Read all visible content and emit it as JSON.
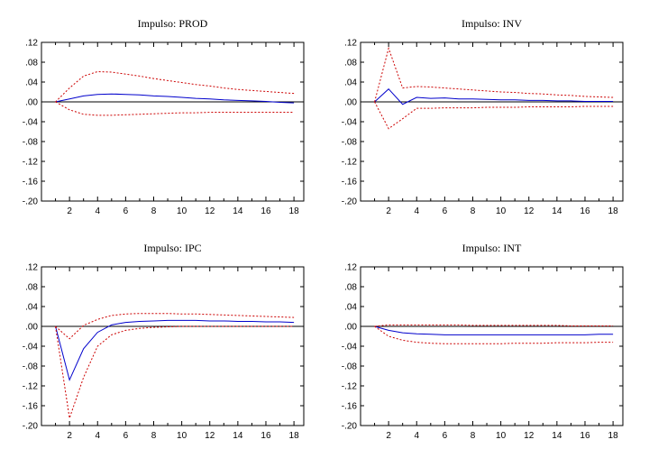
{
  "chart_data": [
    {
      "type": "line",
      "title": "Impulso: PROD",
      "x": [
        1,
        2,
        3,
        4,
        5,
        6,
        7,
        8,
        9,
        10,
        11,
        12,
        13,
        14,
        15,
        16,
        17,
        18
      ],
      "xticks": [
        2,
        4,
        6,
        8,
        10,
        12,
        14,
        16,
        18
      ],
      "xlim": [
        0,
        18.7
      ],
      "ylim": [
        -0.2,
        0.12
      ],
      "yticks": [
        0.12,
        0.08,
        0.04,
        0.0,
        -0.04,
        -0.08,
        -0.12,
        -0.16,
        -0.2
      ],
      "ytick_labels": [
        ".12",
        ".08",
        ".04",
        ".00",
        "-.04",
        "-.08",
        "-.12",
        "-.16",
        "-.20"
      ],
      "zero_line": true,
      "grid": false,
      "series": [
        {
          "role": "response",
          "color": "#0000cc",
          "dash": "solid",
          "values": [
            0.0,
            0.006,
            0.012,
            0.015,
            0.016,
            0.015,
            0.014,
            0.012,
            0.011,
            0.009,
            0.007,
            0.006,
            0.004,
            0.003,
            0.002,
            0.001,
            -0.001,
            -0.002
          ]
        },
        {
          "role": "upper",
          "color": "#cc0000",
          "dash": "dotted",
          "values": [
            0.0,
            0.028,
            0.052,
            0.061,
            0.06,
            0.056,
            0.052,
            0.047,
            0.043,
            0.039,
            0.035,
            0.032,
            0.028,
            0.025,
            0.023,
            0.021,
            0.019,
            0.017
          ]
        },
        {
          "role": "lower",
          "color": "#cc0000",
          "dash": "dotted",
          "values": [
            0.0,
            -0.016,
            -0.025,
            -0.027,
            -0.027,
            -0.026,
            -0.025,
            -0.024,
            -0.023,
            -0.022,
            -0.022,
            -0.021,
            -0.021,
            -0.021,
            -0.021,
            -0.021,
            -0.021,
            -0.021
          ]
        }
      ]
    },
    {
      "type": "line",
      "title": "Impulso: INV",
      "x": [
        1,
        2,
        3,
        4,
        5,
        6,
        7,
        8,
        9,
        10,
        11,
        12,
        13,
        14,
        15,
        16,
        17,
        18
      ],
      "xticks": [
        2,
        4,
        6,
        8,
        10,
        12,
        14,
        16,
        18
      ],
      "xlim": [
        0,
        18.7
      ],
      "ylim": [
        -0.2,
        0.12
      ],
      "yticks": [
        0.12,
        0.08,
        0.04,
        0.0,
        -0.04,
        -0.08,
        -0.12,
        -0.16,
        -0.2
      ],
      "ytick_labels": [
        ".12",
        ".08",
        ".04",
        ".00",
        "-.04",
        "-.08",
        "-.12",
        "-.16",
        "-.20"
      ],
      "zero_line": true,
      "grid": false,
      "series": [
        {
          "role": "response",
          "color": "#0000cc",
          "dash": "solid",
          "values": [
            0.0,
            0.026,
            -0.005,
            0.009,
            0.007,
            0.008,
            0.006,
            0.006,
            0.005,
            0.004,
            0.004,
            0.003,
            0.003,
            0.002,
            0.002,
            0.001,
            0.001,
            0.001
          ]
        },
        {
          "role": "upper",
          "color": "#cc0000",
          "dash": "dotted",
          "values": [
            0.0,
            0.108,
            0.028,
            0.031,
            0.03,
            0.028,
            0.026,
            0.024,
            0.022,
            0.02,
            0.019,
            0.017,
            0.016,
            0.014,
            0.013,
            0.011,
            0.01,
            0.009
          ]
        },
        {
          "role": "lower",
          "color": "#cc0000",
          "dash": "dotted",
          "values": [
            0.0,
            -0.054,
            -0.034,
            -0.013,
            -0.013,
            -0.012,
            -0.012,
            -0.012,
            -0.011,
            -0.011,
            -0.011,
            -0.01,
            -0.01,
            -0.01,
            -0.01,
            -0.009,
            -0.009,
            -0.009
          ]
        }
      ]
    },
    {
      "type": "line",
      "title": "Impulso: IPC",
      "x": [
        1,
        2,
        3,
        4,
        5,
        6,
        7,
        8,
        9,
        10,
        11,
        12,
        13,
        14,
        15,
        16,
        17,
        18
      ],
      "xticks": [
        2,
        4,
        6,
        8,
        10,
        12,
        14,
        16,
        18
      ],
      "xlim": [
        0,
        18.7
      ],
      "ylim": [
        -0.2,
        0.12
      ],
      "yticks": [
        0.12,
        0.08,
        0.04,
        0.0,
        -0.04,
        -0.08,
        -0.12,
        -0.16,
        -0.2
      ],
      "ytick_labels": [
        ".12",
        ".08",
        ".04",
        ".00",
        "-.04",
        "-.08",
        "-.12",
        "-.16",
        "-.20"
      ],
      "zero_line": true,
      "grid": false,
      "series": [
        {
          "role": "response",
          "color": "#0000cc",
          "dash": "solid",
          "values": [
            0.0,
            -0.108,
            -0.045,
            -0.012,
            0.003,
            0.008,
            0.01,
            0.011,
            0.012,
            0.012,
            0.012,
            0.011,
            0.011,
            0.01,
            0.01,
            0.009,
            0.009,
            0.008
          ]
        },
        {
          "role": "upper",
          "color": "#cc0000",
          "dash": "dotted",
          "values": [
            0.0,
            -0.025,
            0.002,
            0.014,
            0.022,
            0.025,
            0.026,
            0.026,
            0.026,
            0.025,
            0.025,
            0.024,
            0.023,
            0.022,
            0.021,
            0.02,
            0.019,
            0.018
          ]
        },
        {
          "role": "lower",
          "color": "#cc0000",
          "dash": "dotted",
          "values": [
            0.0,
            -0.185,
            -0.103,
            -0.04,
            -0.017,
            -0.008,
            -0.004,
            -0.002,
            -0.001,
            0.0,
            0.0,
            0.0,
            0.0,
            0.0,
            0.0,
            0.0,
            0.0,
            0.0
          ]
        }
      ]
    },
    {
      "type": "line",
      "title": "Impulso: INT",
      "x": [
        1,
        2,
        3,
        4,
        5,
        6,
        7,
        8,
        9,
        10,
        11,
        12,
        13,
        14,
        15,
        16,
        17,
        18
      ],
      "xticks": [
        2,
        4,
        6,
        8,
        10,
        12,
        14,
        16,
        18
      ],
      "xlim": [
        0,
        18.7
      ],
      "ylim": [
        -0.2,
        0.12
      ],
      "yticks": [
        0.12,
        0.08,
        0.04,
        0.0,
        -0.04,
        -0.08,
        -0.12,
        -0.16,
        -0.2
      ],
      "ytick_labels": [
        ".12",
        ".08",
        ".04",
        ".00",
        "-.04",
        "-.08",
        "-.12",
        "-.16",
        "-.20"
      ],
      "zero_line": true,
      "grid": false,
      "series": [
        {
          "role": "response",
          "color": "#0000cc",
          "dash": "solid",
          "values": [
            0.0,
            -0.008,
            -0.013,
            -0.015,
            -0.016,
            -0.017,
            -0.017,
            -0.017,
            -0.017,
            -0.017,
            -0.017,
            -0.017,
            -0.017,
            -0.017,
            -0.017,
            -0.017,
            -0.016,
            -0.016
          ]
        },
        {
          "role": "upper",
          "color": "#cc0000",
          "dash": "dotted",
          "values": [
            0.0,
            0.003,
            0.003,
            0.003,
            0.003,
            0.003,
            0.003,
            0.002,
            0.002,
            0.002,
            0.002,
            0.002,
            0.002,
            0.002,
            0.001,
            0.001,
            0.001,
            0.001
          ]
        },
        {
          "role": "lower",
          "color": "#cc0000",
          "dash": "dotted",
          "values": [
            0.0,
            -0.02,
            -0.028,
            -0.032,
            -0.034,
            -0.035,
            -0.035,
            -0.035,
            -0.035,
            -0.035,
            -0.034,
            -0.034,
            -0.034,
            -0.033,
            -0.033,
            -0.033,
            -0.032,
            -0.032
          ]
        }
      ]
    }
  ]
}
